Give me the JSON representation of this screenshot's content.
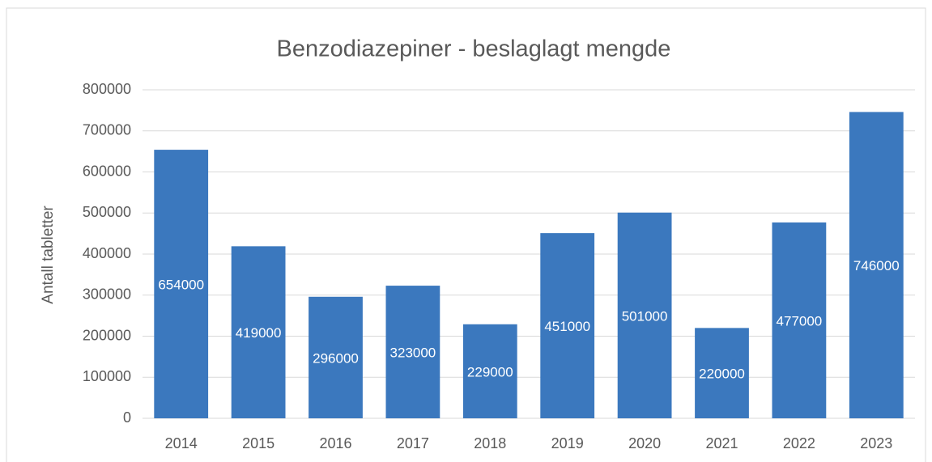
{
  "chart_data": {
    "type": "bar",
    "title": "Benzodiazepiner - beslaglagt mengde",
    "y_label": "Antall tabletter",
    "categories": [
      "2014",
      "2015",
      "2016",
      "2017",
      "2018",
      "2019",
      "2020",
      "2021",
      "2022",
      "2023"
    ],
    "values": [
      654000,
      419000,
      296000,
      323000,
      229000,
      451000,
      501000,
      220000,
      477000,
      746000
    ],
    "color": "#3b78be",
    "data_labels": true,
    "ylim": [
      0,
      800000
    ],
    "yticks": [
      0,
      100000,
      200000,
      300000,
      400000,
      500000,
      600000,
      700000,
      800000
    ],
    "grid": true
  }
}
